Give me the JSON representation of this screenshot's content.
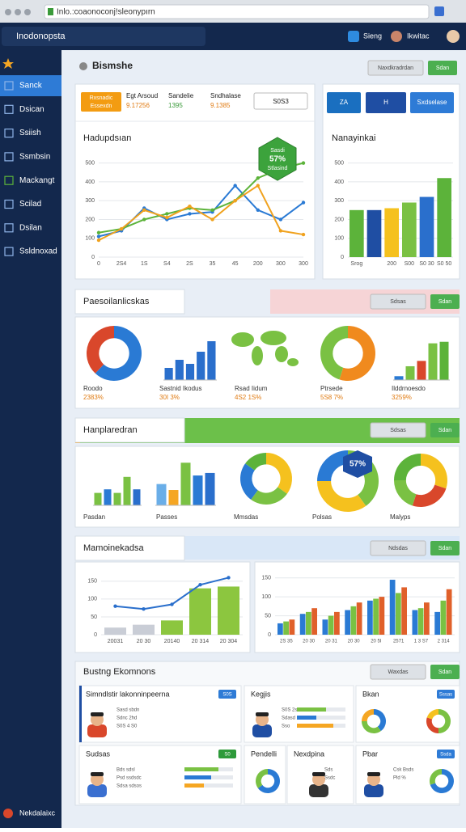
{
  "browser": {
    "url": "Inlo.:coaonoconj!sleonypırn"
  },
  "app": {
    "name": "Inodonopsta",
    "user_links": [
      "Sieng",
      "Ikwitac"
    ]
  },
  "sidebar": {
    "items": [
      "Sanck",
      "Dsican",
      "Ssiish",
      "Ssmbsin",
      "Mackangt",
      "Scilad",
      "Dsilan",
      "Ssldnoxad"
    ],
    "footer": "Nekdalaixc"
  },
  "header": {
    "title": "Bismshe",
    "buttons": [
      "Naxdkradrdan",
      "Sdan"
    ]
  },
  "overview": {
    "badge_lines": [
      "Rxsnadic",
      "Essexdn"
    ],
    "stats": [
      {
        "label": "Egt Arsoud",
        "value": "9.17256"
      },
      {
        "label": "Sandelie",
        "value": "1395"
      },
      {
        "label": "Sndhalase",
        "value": "9.1385"
      }
    ],
    "chip": "S0S3",
    "line_chart": {
      "type": "line",
      "title": "Hadupdsıan",
      "categories": [
        "0",
        "2S4",
        "1S",
        "S4",
        "2S",
        "35",
        "45",
        "200",
        "300",
        "300"
      ],
      "ylim": [
        0,
        550
      ],
      "yticks": [
        0,
        100,
        200,
        300,
        400,
        500
      ],
      "grid": true,
      "series": [
        {
          "color": "#2a7ad4",
          "values": [
            110,
            140,
            260,
            200,
            230,
            240,
            380,
            250,
            200,
            290
          ]
        },
        {
          "color": "#5cb33a",
          "values": [
            130,
            150,
            200,
            230,
            260,
            250,
            300,
            420,
            470,
            500
          ]
        },
        {
          "color": "#f0a21e",
          "values": [
            90,
            150,
            250,
            210,
            270,
            200,
            300,
            380,
            140,
            120
          ]
        }
      ],
      "annotation_lines": [
        "Sasdi",
        "57%",
        "Stlasind"
      ]
    },
    "top_buttons": [
      "ZA",
      "H",
      "Sxdselase"
    ],
    "bar_chart": {
      "type": "bar",
      "title": "Nanayinkai",
      "categories": [
        "Srog",
        null,
        "200",
        "S00",
        "S0 30",
        "S0 50"
      ],
      "values": [
        250,
        250,
        260,
        290,
        320,
        420
      ],
      "colors": [
        "#5cb33a",
        "#1f4ea3",
        "#f5c11e",
        "#7ac143",
        "#2a6fcc",
        "#5cb33a"
      ],
      "ylim": [
        0,
        550
      ],
      "yticks": [
        0,
        100,
        200,
        300,
        400,
        500
      ],
      "grid": true
    }
  },
  "analytics": {
    "title": "Paesoilanlicskas",
    "buttons": [
      "Sdsas",
      "Sdan"
    ],
    "panels": [
      {
        "type": "donut",
        "values": [
          62,
          38
        ],
        "colors": [
          "#2a7ad4",
          "#d9472b"
        ],
        "lines": [
          "Roodo",
          "2383%"
        ]
      },
      {
        "type": "bar",
        "values": [
          15,
          25,
          20,
          35,
          48
        ],
        "ylim": [
          0,
          50
        ],
        "colors": [
          "#2a6fcc"
        ],
        "lines": [
          "Sastnid Ikodus",
          "30I 3%"
        ]
      },
      {
        "type": "map",
        "lines": [
          "Rsad Iidum",
          "4S2 1S%"
        ]
      },
      {
        "type": "donut",
        "values": [
          55,
          45
        ],
        "colors": [
          "#f08a1e",
          "#7ac143"
        ],
        "lines": [
          "Ptrsede",
          "5S8 7%"
        ]
      },
      {
        "type": "bar",
        "values": [
          5,
          18,
          25,
          48,
          50
        ],
        "ylim": [
          0,
          55
        ],
        "colors": [
          "#2a7ad4",
          "#7ac143",
          "#d9472b",
          "#7ac143",
          "#5cb33a"
        ],
        "lines": [
          "Ilddrnoesdo",
          "3259%"
        ]
      }
    ]
  },
  "comparison": {
    "title": "Hanplaredran",
    "buttons": [
      "Sdsas",
      "Sdan"
    ],
    "panels": [
      {
        "type": "bar",
        "values": [
          14,
          18,
          14,
          32,
          18
        ],
        "ylim": [
          0,
          50
        ],
        "colors": [
          "#7ac143",
          "#2a7ad4",
          "#7ac143",
          "#7ac143",
          "#2a6fcc"
        ],
        "lines": [
          "Pasdan"
        ]
      },
      {
        "type": "bar",
        "values": [
          25,
          18,
          50,
          35,
          38
        ],
        "ylim": [
          0,
          55
        ],
        "colors": [
          "#6aaee8",
          "#f5a623",
          "#7ac143",
          "#2a7ad4",
          "#2a6fcc"
        ],
        "lines": [
          "Passes"
        ]
      },
      {
        "type": "donut",
        "values": [
          35,
          25,
          25,
          15
        ],
        "colors": [
          "#f5c11e",
          "#7ac143",
          "#2a7ad4",
          "#5cb33a"
        ],
        "lines": [
          "Mmsdas"
        ]
      },
      {
        "type": "donut",
        "values": [
          40,
          35,
          25
        ],
        "colors": [
          "#7ac143",
          "#f5c11e",
          "#2a7ad4"
        ],
        "lines": [
          "Polsas"
        ],
        "callout": "57%"
      },
      {
        "type": "donut",
        "values": [
          30,
          25,
          20,
          25
        ],
        "colors": [
          "#f5c11e",
          "#d9472b",
          "#7ac143",
          "#5cb33a"
        ],
        "lines": [
          "Malyps"
        ]
      }
    ]
  },
  "trends": {
    "title": "Mamoinekadsa",
    "buttons": [
      "Ndsdas",
      "Sdan"
    ],
    "left": {
      "type": "bar",
      "categories": [
        "20031",
        "20 30",
        "20140",
        "20 314",
        "20 304"
      ],
      "values": [
        20,
        28,
        40,
        130,
        135
      ],
      "colors": [
        "#c9cdd6",
        "#c9cdd6",
        "#8cc63f",
        "#8cc63f",
        "#8cc63f"
      ],
      "line": [
        80,
        72,
        85,
        140,
        160
      ],
      "line_color": "#2a6fcc",
      "ylim": [
        0,
        170
      ],
      "yticks": [
        0,
        50,
        100,
        150
      ]
    },
    "right": {
      "type": "bar",
      "categories": [
        "2S 35",
        "20 30",
        "20 31",
        "20 30",
        "20 5I",
        "2571",
        "1 3 S7",
        "2 314"
      ],
      "series": [
        {
          "color": "#2a7ad4",
          "values": [
            30,
            55,
            40,
            65,
            90,
            145,
            65,
            60
          ]
        },
        {
          "color": "#7ac143",
          "values": [
            35,
            60,
            50,
            75,
            95,
            110,
            70,
            90
          ]
        },
        {
          "color": "#e0602a",
          "values": [
            40,
            70,
            60,
            85,
            100,
            125,
            85,
            120
          ]
        }
      ],
      "ylim": [
        0,
        160
      ],
      "yticks": [
        0,
        50,
        100,
        150
      ]
    }
  },
  "people": {
    "title": "Bustng Ekomnons",
    "buttons": [
      "Waxdas",
      "Sdan"
    ],
    "cards": [
      {
        "title": "Simndlstir lakonninpeerna",
        "tag": "S0S",
        "person": true,
        "lines": [
          "Sasd sbdn",
          "Sdnc 2hd",
          "S0S 4 S0"
        ]
      },
      {
        "title": "Kegjis",
        "person": true,
        "lines": [
          "S0S 2sa",
          "Sdasd 2sd",
          "Sso"
        ],
        "progress": [
          60,
          40,
          75
        ]
      },
      {
        "title": "Bkan",
        "tag": "Sssas",
        "donuts": [
          {
            "values": [
              40,
              35,
              25
            ],
            "colors": [
              "#2a7ad4",
              "#7ac143",
              "#f5a623"
            ]
          },
          {
            "values": [
              50,
              30,
              20
            ],
            "colors": [
              "#7ac143",
              "#d9472b",
              "#f5c11e"
            ]
          }
        ]
      },
      {
        "title": "Sudsas",
        "tag": "S0",
        "person": true,
        "lines": [
          "Bds sdsl",
          "Psd ssdsdc",
          "Sdsa sdsos"
        ],
        "progress": [
          70,
          55,
          40
        ]
      },
      {
        "title": "Pendelli",
        "donuts": [
          {
            "values": [
              65,
              35
            ],
            "colors": [
              "#2a7ad4",
              "#7ac143"
            ]
          }
        ]
      },
      {
        "title": "Nexdpina",
        "person": true,
        "lines": [
          "Sds",
          "Ssdc"
        ]
      },
      {
        "title": "Pbar",
        "tag": "Ssda",
        "person": true,
        "lines": [
          "Csk Bsds",
          "Pld %"
        ],
        "donuts": [
          {
            "values": [
              70,
              30
            ],
            "colors": [
              "#2a7ad4",
              "#7ac143"
            ]
          }
        ]
      }
    ]
  }
}
